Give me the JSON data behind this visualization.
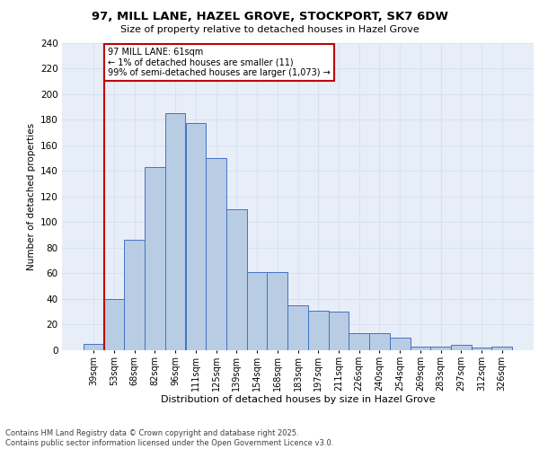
{
  "title_line1": "97, MILL LANE, HAZEL GROVE, STOCKPORT, SK7 6DW",
  "title_line2": "Size of property relative to detached houses in Hazel Grove",
  "xlabel": "Distribution of detached houses by size in Hazel Grove",
  "ylabel": "Number of detached properties",
  "categories": [
    "39sqm",
    "53sqm",
    "68sqm",
    "82sqm",
    "96sqm",
    "111sqm",
    "125sqm",
    "139sqm",
    "154sqm",
    "168sqm",
    "183sqm",
    "197sqm",
    "211sqm",
    "226sqm",
    "240sqm",
    "254sqm",
    "269sqm",
    "283sqm",
    "297sqm",
    "312sqm",
    "326sqm"
  ],
  "values": [
    5,
    40,
    86,
    143,
    185,
    177,
    150,
    110,
    61,
    61,
    35,
    31,
    30,
    13,
    13,
    10,
    3,
    3,
    4,
    2,
    3
  ],
  "bar_color": "#b8cce4",
  "bar_edge_color": "#4472c4",
  "vline_color": "#c00000",
  "vline_index": 1,
  "annotation_text": "97 MILL LANE: 61sqm\n← 1% of detached houses are smaller (11)\n99% of semi-detached houses are larger (1,073) →",
  "annotation_box_color": "#ffffff",
  "annotation_box_edge": "#c00000",
  "ylim": [
    0,
    240
  ],
  "yticks": [
    0,
    20,
    40,
    60,
    80,
    100,
    120,
    140,
    160,
    180,
    200,
    220,
    240
  ],
  "grid_color": "#d9e1f2",
  "footer": "Contains HM Land Registry data © Crown copyright and database right 2025.\nContains public sector information licensed under the Open Government Licence v3.0.",
  "bg_color": "#e8eef8",
  "fig_bg_color": "#ffffff"
}
